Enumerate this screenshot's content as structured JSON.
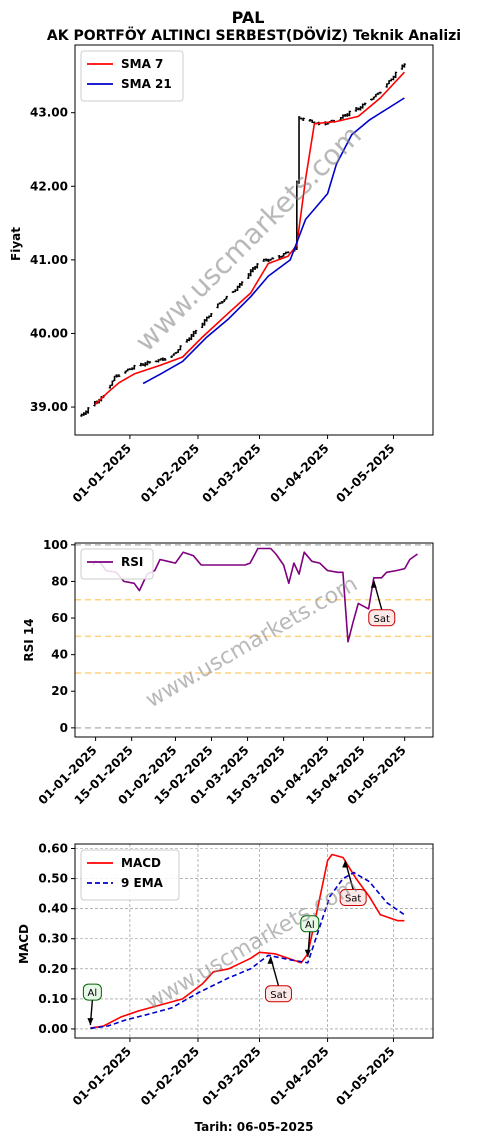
{
  "header": {
    "symbol": "PAL",
    "title": "AK PORTFÖY ALTINCI SERBEST(DÖVİZ) Teknik Analizi",
    "footer": "Tarih: 06-05-2025",
    "watermark": "www.uscmarkets.com"
  },
  "chart_data": [
    {
      "type": "line",
      "panel": "price",
      "ylabel": "Fiyat",
      "ylim": [
        38.62,
        43.92
      ],
      "y_ticks": [
        "39.00",
        "40.00",
        "41.00",
        "42.00",
        "43.00"
      ],
      "y_tick_values": [
        39,
        40,
        41,
        42,
        43
      ],
      "xlim": [
        "2024-12-07",
        "2025-05-19"
      ],
      "x_ticks": [
        "01-01-2025",
        "01-02-2025",
        "01-03-2025",
        "01-04-2025",
        "01-05-2025"
      ],
      "x_tick_dates": [
        "2025-01-01",
        "2025-02-01",
        "2025-03-01",
        "2025-04-01",
        "2025-05-01"
      ],
      "legend": "top-left",
      "ohlc_color": "#000000",
      "ohlc": {
        "start": "2024-12-10",
        "end": "2025-05-06",
        "points": [
          [
            "2024-12-10",
            38.88
          ],
          [
            "2024-12-20",
            39.15
          ],
          [
            "2024-12-25",
            39.42
          ],
          [
            "2025-01-01",
            39.52
          ],
          [
            "2025-01-10",
            39.6
          ],
          [
            "2025-01-20",
            39.7
          ],
          [
            "2025-02-01",
            40.05
          ],
          [
            "2025-02-10",
            40.4
          ],
          [
            "2025-02-20",
            40.65
          ],
          [
            "2025-03-01",
            40.98
          ],
          [
            "2025-03-10",
            41.05
          ],
          [
            "2025-03-17",
            41.15
          ],
          [
            "2025-03-19",
            42.92
          ],
          [
            "2025-03-28",
            42.85
          ],
          [
            "2025-04-05",
            42.9
          ],
          [
            "2025-04-15",
            43.05
          ],
          [
            "2025-04-25",
            43.3
          ],
          [
            "2025-05-06",
            43.65
          ]
        ]
      },
      "series": [
        {
          "name": "SMA 7",
          "color": "#ff0000",
          "points": [
            [
              "2024-12-16",
              39.03
            ],
            [
              "2024-12-22",
              39.2
            ],
            [
              "2024-12-27",
              39.33
            ],
            [
              "2025-01-03",
              39.45
            ],
            [
              "2025-01-15",
              39.57
            ],
            [
              "2025-01-25",
              39.68
            ],
            [
              "2025-02-03",
              39.95
            ],
            [
              "2025-02-15",
              40.28
            ],
            [
              "2025-02-25",
              40.55
            ],
            [
              "2025-03-05",
              40.95
            ],
            [
              "2025-03-14",
              41.05
            ],
            [
              "2025-03-18",
              41.2
            ],
            [
              "2025-03-22",
              42.1
            ],
            [
              "2025-03-26",
              42.85
            ],
            [
              "2025-04-05",
              42.88
            ],
            [
              "2025-04-15",
              42.95
            ],
            [
              "2025-04-25",
              43.2
            ],
            [
              "2025-05-06",
              43.55
            ]
          ]
        },
        {
          "name": "SMA 21",
          "color": "#0000cd",
          "points": [
            [
              "2025-01-07",
              39.32
            ],
            [
              "2025-01-15",
              39.45
            ],
            [
              "2025-01-25",
              39.62
            ],
            [
              "2025-02-05",
              39.95
            ],
            [
              "2025-02-15",
              40.2
            ],
            [
              "2025-02-25",
              40.5
            ],
            [
              "2025-03-05",
              40.78
            ],
            [
              "2025-03-15",
              41.0
            ],
            [
              "2025-03-22",
              41.55
            ],
            [
              "2025-04-01",
              41.9
            ],
            [
              "2025-04-05",
              42.3
            ],
            [
              "2025-04-12",
              42.7
            ],
            [
              "2025-04-20",
              42.9
            ],
            [
              "2025-04-28",
              43.05
            ],
            [
              "2025-05-06",
              43.2
            ]
          ]
        }
      ]
    },
    {
      "type": "line",
      "panel": "rsi",
      "ylabel": "RSI 14",
      "ylim": [
        -5,
        101
      ],
      "y_ticks": [
        "0",
        "20",
        "40",
        "60",
        "80",
        "100"
      ],
      "y_tick_values": [
        0,
        20,
        40,
        60,
        80,
        100
      ],
      "xlim": [
        "2024-12-24",
        "2025-05-12"
      ],
      "x_ticks": [
        "01-01-2025",
        "15-01-2025",
        "01-02-2025",
        "15-02-2025",
        "01-03-2025",
        "15-03-2025",
        "01-04-2025",
        "15-04-2025",
        "01-05-2025"
      ],
      "x_tick_dates": [
        "2025-01-01",
        "2025-01-15",
        "2025-02-01",
        "2025-02-15",
        "2025-03-01",
        "2025-03-15",
        "2025-04-01",
        "2025-04-15",
        "2025-05-01"
      ],
      "legend": "top-left",
      "reference_lines": [
        {
          "value": 100,
          "color": "#bbbbbb"
        },
        {
          "value": 70,
          "color": "#ffd27f"
        },
        {
          "value": 50,
          "color": "#ffd27f"
        },
        {
          "value": 30,
          "color": "#ffd27f"
        },
        {
          "value": 0,
          "color": "#bbbbbb"
        }
      ],
      "series": [
        {
          "name": "RSI",
          "color": "#800080",
          "points": [
            [
              "2024-12-31",
              89
            ],
            [
              "2025-01-01",
              91
            ],
            [
              "2025-01-03",
              90
            ],
            [
              "2025-01-05",
              86
            ],
            [
              "2025-01-09",
              85
            ],
            [
              "2025-01-12",
              80
            ],
            [
              "2025-01-16",
              79
            ],
            [
              "2025-01-18",
              75
            ],
            [
              "2025-01-21",
              84
            ],
            [
              "2025-01-24",
              86
            ],
            [
              "2025-01-26",
              92
            ],
            [
              "2025-01-29",
              91
            ],
            [
              "2025-02-01",
              90
            ],
            [
              "2025-02-04",
              96
            ],
            [
              "2025-02-08",
              94
            ],
            [
              "2025-02-11",
              89
            ],
            [
              "2025-02-18",
              89
            ],
            [
              "2025-02-24",
              89
            ],
            [
              "2025-02-28",
              89
            ],
            [
              "2025-03-02",
              90
            ],
            [
              "2025-03-05",
              98
            ],
            [
              "2025-03-10",
              98
            ],
            [
              "2025-03-12",
              95
            ],
            [
              "2025-03-15",
              89
            ],
            [
              "2025-03-17",
              79
            ],
            [
              "2025-03-19",
              90
            ],
            [
              "2025-03-21",
              84
            ],
            [
              "2025-03-23",
              96
            ],
            [
              "2025-03-26",
              91
            ],
            [
              "2025-03-29",
              90
            ],
            [
              "2025-04-01",
              86
            ],
            [
              "2025-04-05",
              85
            ],
            [
              "2025-04-07",
              85
            ],
            [
              "2025-04-09",
              47
            ],
            [
              "2025-04-11",
              58
            ],
            [
              "2025-04-13",
              68
            ],
            [
              "2025-04-17",
              65
            ],
            [
              "2025-04-19",
              82
            ],
            [
              "2025-04-22",
              82
            ],
            [
              "2025-04-24",
              85
            ],
            [
              "2025-04-28",
              86
            ],
            [
              "2025-05-01",
              87
            ],
            [
              "2025-05-03",
              92
            ],
            [
              "2025-05-06",
              95
            ]
          ]
        }
      ],
      "annotations": [
        {
          "text": "Sat",
          "date": "2025-04-19",
          "value": 82
        }
      ]
    },
    {
      "type": "line",
      "panel": "macd",
      "ylabel": "MACD",
      "ylim": [
        -0.03,
        0.615
      ],
      "y_ticks": [
        "0.00",
        "0.10",
        "0.20",
        "0.30",
        "0.40",
        "0.50",
        "0.60"
      ],
      "y_tick_values": [
        0,
        0.1,
        0.2,
        0.3,
        0.4,
        0.5,
        0.6
      ],
      "xlim": [
        "2024-12-07",
        "2025-05-19"
      ],
      "x_ticks": [
        "01-01-2025",
        "01-02-2025",
        "01-03-2025",
        "01-04-2025",
        "01-05-2025"
      ],
      "x_tick_dates": [
        "2025-01-01",
        "2025-02-01",
        "2025-03-01",
        "2025-04-01",
        "2025-05-01"
      ],
      "legend": "top-left",
      "grid": true,
      "series": [
        {
          "name": "MACD",
          "color": "#ff0000",
          "points": [
            [
              "2024-12-14",
              0.003
            ],
            [
              "2024-12-20",
              0.01
            ],
            [
              "2024-12-28",
              0.04
            ],
            [
              "2025-01-05",
              0.06
            ],
            [
              "2025-01-15",
              0.08
            ],
            [
              "2025-01-25",
              0.1
            ],
            [
              "2025-02-03",
              0.15
            ],
            [
              "2025-02-08",
              0.19
            ],
            [
              "2025-02-15",
              0.2
            ],
            [
              "2025-02-25",
              0.235
            ],
            [
              "2025-03-01",
              0.255
            ],
            [
              "2025-03-08",
              0.25
            ],
            [
              "2025-03-12",
              0.24
            ],
            [
              "2025-03-20",
              0.22
            ],
            [
              "2025-03-23",
              0.25
            ],
            [
              "2025-03-28",
              0.42
            ],
            [
              "2025-04-01",
              0.56
            ],
            [
              "2025-04-03",
              0.58
            ],
            [
              "2025-04-08",
              0.57
            ],
            [
              "2025-04-14",
              0.5
            ],
            [
              "2025-04-20",
              0.44
            ],
            [
              "2025-04-25",
              0.38
            ],
            [
              "2025-04-29",
              0.37
            ],
            [
              "2025-05-03",
              0.36
            ],
            [
              "2025-05-06",
              0.36
            ]
          ]
        },
        {
          "name": "9 EMA",
          "color": "#0000cd",
          "dash": true,
          "points": [
            [
              "2024-12-14",
              0.002
            ],
            [
              "2024-12-22",
              0.01
            ],
            [
              "2024-12-30",
              0.03
            ],
            [
              "2025-01-10",
              0.05
            ],
            [
              "2025-01-20",
              0.07
            ],
            [
              "2025-02-01",
              0.12
            ],
            [
              "2025-02-15",
              0.17
            ],
            [
              "2025-02-25",
              0.2
            ],
            [
              "2025-03-05",
              0.245
            ],
            [
              "2025-03-15",
              0.23
            ],
            [
              "2025-03-23",
              0.22
            ],
            [
              "2025-03-28",
              0.33
            ],
            [
              "2025-04-02",
              0.44
            ],
            [
              "2025-04-08",
              0.5
            ],
            [
              "2025-04-13",
              0.52
            ],
            [
              "2025-04-20",
              0.49
            ],
            [
              "2025-04-28",
              0.42
            ],
            [
              "2025-05-06",
              0.38
            ]
          ]
        }
      ],
      "annotations": [
        {
          "text": "Al",
          "date": "2024-12-14",
          "value": 0.003
        },
        {
          "text": "Sat",
          "date": "2025-03-06",
          "value": 0.25
        },
        {
          "text": "Al",
          "date": "2025-03-23",
          "value": 0.23
        },
        {
          "text": "Sat",
          "date": "2025-04-09",
          "value": 0.57
        }
      ]
    }
  ]
}
